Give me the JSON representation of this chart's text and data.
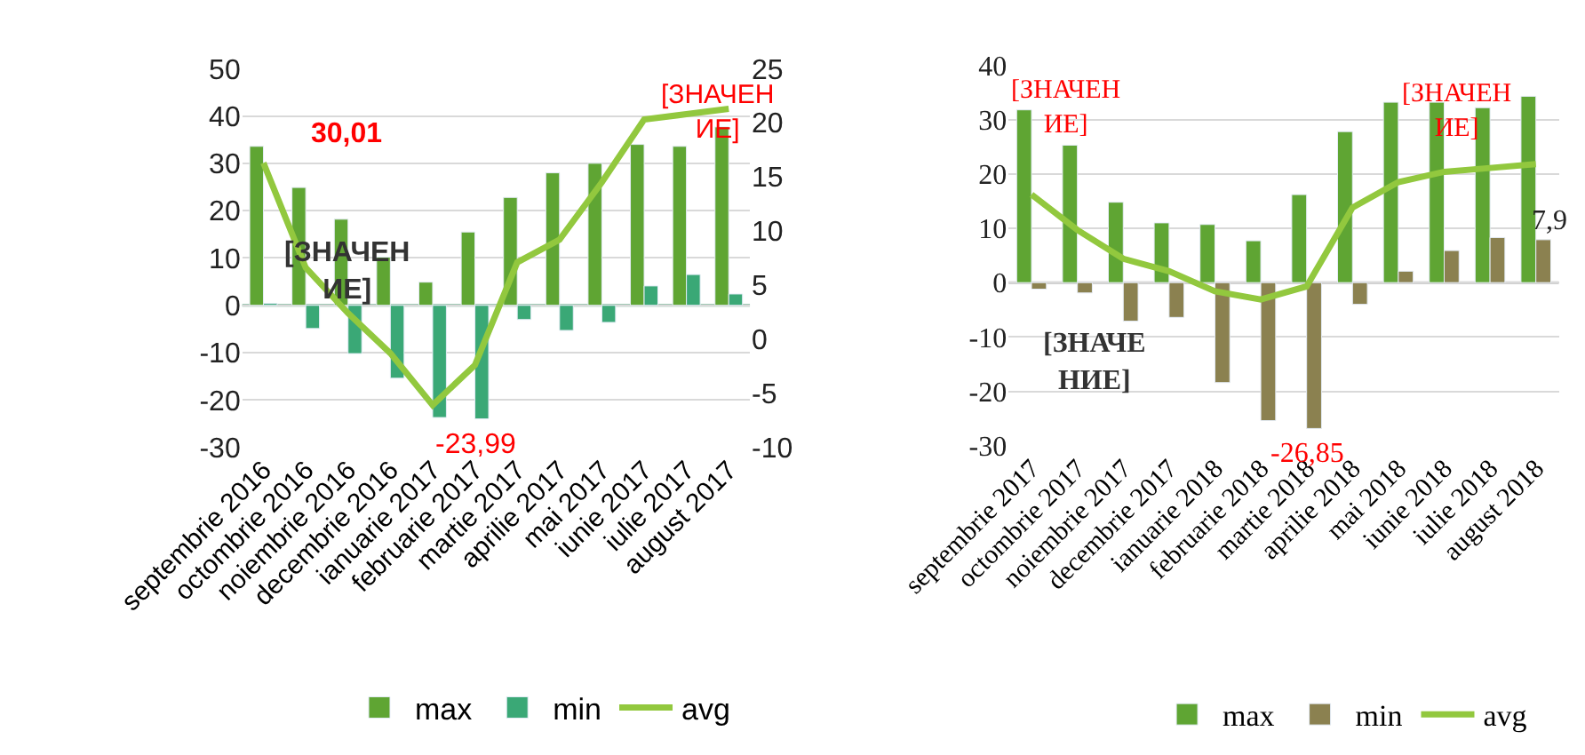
{
  "chart_data": [
    {
      "type": "bar",
      "categories": [
        "septembrie 2016",
        "octombrie 2016",
        "noiembrie 2016",
        "decembrie 2016",
        "ianuarie 2017",
        "februarie 2017",
        "martie 2017",
        "aprilie 2017",
        "mai 2017",
        "iunie 2017",
        "iulie 2017",
        "august 2017"
      ],
      "series": [
        {
          "name": "max",
          "color": "#5fa533",
          "values": [
            33.6,
            24.9,
            18.2,
            10.2,
            4.9,
            15.5,
            22.8,
            28.0,
            30.01,
            34.0,
            33.6,
            37.7
          ]
        },
        {
          "name": "min",
          "color": "#3aa876",
          "values": [
            0.4,
            -4.9,
            -10.2,
            -15.4,
            -23.7,
            -23.99,
            -3.0,
            -5.3,
            -3.6,
            4.1,
            6.5,
            2.4
          ]
        },
        {
          "name": "avg",
          "type": "line",
          "axis": "y2",
          "color": "#92c83e",
          "values": [
            16.3,
            6.6,
            2.4,
            -1.3,
            -6.1,
            -2.4,
            7.1,
            9.2,
            14.5,
            20.3,
            20.8,
            21.3
          ]
        }
      ],
      "ylim": [
        -30,
        50
      ],
      "yticks": [
        -30,
        -20,
        -10,
        0,
        10,
        20,
        30,
        40,
        50
      ],
      "y2lim": [
        -10,
        25
      ],
      "y2ticks": [
        -10,
        -5,
        0,
        5,
        10,
        15,
        20,
        25
      ],
      "grid": "y",
      "legend": "bottom",
      "ref_lines": [
        {
          "axis": "y",
          "value": 0,
          "color": "#7fb69a"
        }
      ],
      "annotations": [
        "30,01",
        "[ЗНАЧЕН\nИЕ]",
        {
          "text": "-23,99",
          "x": "februarie 2017",
          "y": -23.99
        },
        "[ЗНАЧЕН\nИЕ]"
      ]
    },
    {
      "type": "bar",
      "categories": [
        "septembrie 2017",
        "octombrie 2017",
        "noiembrie 2017",
        "decembrie 2017",
        "ianuarie 2018",
        "februarie 2018",
        "martie 2018",
        "aprilie 2018",
        "mai 2018",
        "iunie 2018",
        "iulie 2018",
        "august 2018"
      ],
      "series": [
        {
          "name": "max",
          "color": "#5fa533",
          "values": [
            31.8,
            25.3,
            14.8,
            11.0,
            10.7,
            7.7,
            16.2,
            27.8,
            33.2,
            33.2,
            32.2,
            34.3
          ]
        },
        {
          "name": "min",
          "color": "#8b8150",
          "values": [
            -1.2,
            -1.9,
            -7.1,
            -6.4,
            -18.4,
            -25.4,
            -26.85,
            -4.0,
            2.1,
            5.9,
            8.3,
            7.9
          ]
        },
        {
          "name": "avg",
          "type": "line",
          "color": "#92c83e",
          "values": [
            16.2,
            9.7,
            4.4,
            2.1,
            -1.6,
            -3.1,
            -0.7,
            13.8,
            18.5,
            20.4,
            21.1,
            21.8
          ]
        }
      ],
      "ylim": [
        -30,
        40
      ],
      "yticks": [
        -30,
        -20,
        -10,
        0,
        10,
        20,
        30,
        40
      ],
      "grid": "y",
      "legend": "bottom",
      "ref_lines": [
        {
          "axis": "y",
          "value": 0,
          "color": "#bfbfbf"
        }
      ],
      "annotations": [
        "[ЗНАЧЕН\nИЕ]",
        "[ЗНАЧЕН\nИЕ]",
        "[ЗНАЧЕ\nНИЕ]",
        {
          "text": "-26,85",
          "x": "martie 2018",
          "y": -26.85
        },
        {
          "text": "7,9",
          "x": "august 2018",
          "y": 7.9
        }
      ]
    }
  ]
}
